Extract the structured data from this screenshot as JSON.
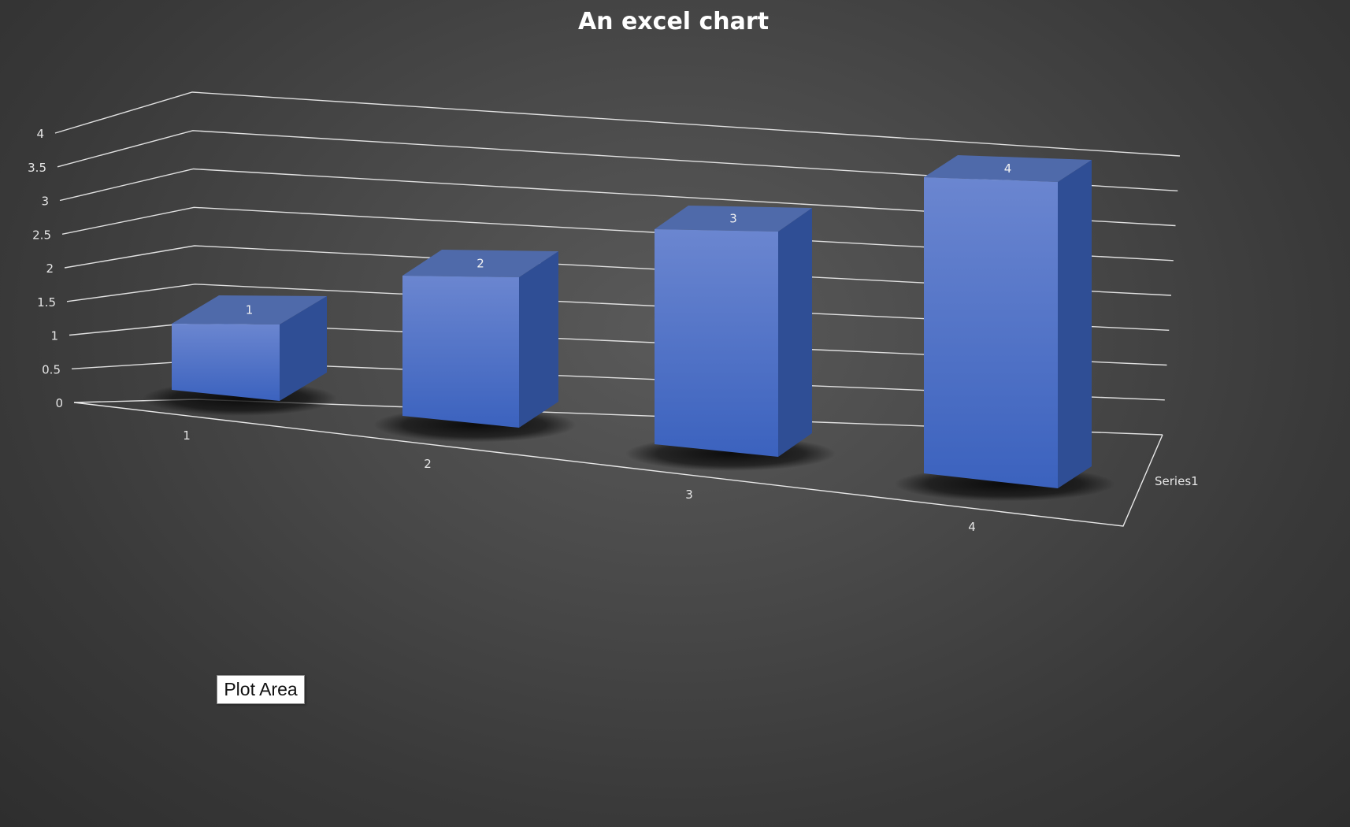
{
  "chart_data": {
    "type": "bar",
    "variant": "3d-column",
    "title": "An excel chart",
    "categories": [
      "1",
      "2",
      "3",
      "4"
    ],
    "series": [
      {
        "name": "Series1",
        "values": [
          1,
          2,
          3,
          4
        ]
      }
    ],
    "data_labels": [
      "1",
      "2",
      "3",
      "4"
    ],
    "y_ticks": [
      "0",
      "0.5",
      "1",
      "1.5",
      "2",
      "2.5",
      "3",
      "3.5",
      "4"
    ],
    "ylim": [
      0,
      4
    ],
    "xlabel": "",
    "ylabel": "",
    "depth_axis_label": "Series1",
    "grid": true,
    "legend": "none"
  },
  "tooltip": {
    "text": "Plot Area"
  },
  "colors": {
    "bar_front_top": "#6b86d0",
    "bar_front_bottom": "#3b62be",
    "bar_top_face": "#4f6aaa",
    "bar_side_face": "#2f4e95",
    "background": "#4a4a4a",
    "gridline": "#e0e0e0"
  }
}
